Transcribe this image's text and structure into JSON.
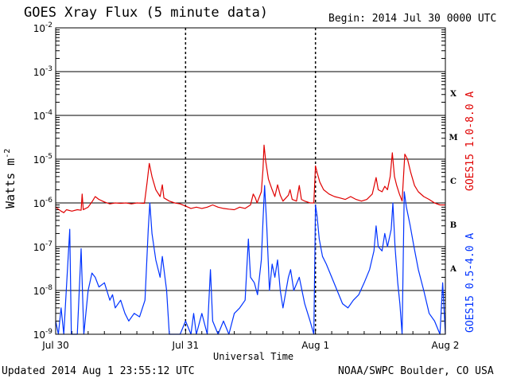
{
  "chart_data": {
    "type": "line",
    "title": "GOES Xray Flux (5 minute data)",
    "begin_label": "Begin:  2014 Jul 30 0000 UTC",
    "xlabel": "Universal Time",
    "ylabel": "Watts m",
    "ylabel_sup": "-2",
    "y_scale": "log",
    "ylim": [
      1e-09,
      0.01
    ],
    "xlim_hours": [
      0,
      72
    ],
    "grid": true,
    "x_ticks": [
      {
        "label": "Jul 30",
        "hour": 0
      },
      {
        "label": "Jul 31",
        "hour": 24
      },
      {
        "label": "Aug 1",
        "hour": 48
      },
      {
        "label": "Aug 2",
        "hour": 72
      }
    ],
    "y_ticks": [
      {
        "base": "10",
        "exp": "-9",
        "value": 1e-09
      },
      {
        "base": "10",
        "exp": "-8",
        "value": 1e-08
      },
      {
        "base": "10",
        "exp": "-7",
        "value": 1e-07
      },
      {
        "base": "10",
        "exp": "-6",
        "value": 1e-06
      },
      {
        "base": "10",
        "exp": "-5",
        "value": 1e-05
      },
      {
        "base": "10",
        "exp": "-4",
        "value": 0.0001
      },
      {
        "base": "10",
        "exp": "-3",
        "value": 0.001
      },
      {
        "base": "10",
        "exp": "-2",
        "value": 0.01
      }
    ],
    "flare_classes": [
      {
        "label": "A",
        "value": 3.2e-08
      },
      {
        "label": "B",
        "value": 3.2e-07
      },
      {
        "label": "C",
        "value": 3.2e-06
      },
      {
        "label": "M",
        "value": 3.2e-05
      },
      {
        "label": "X",
        "value": 0.00032
      }
    ],
    "series": [
      {
        "name": "GOES15 1.0-8.0 A",
        "color": "#e00000",
        "points": [
          [
            0,
            8e-07
          ],
          [
            1,
            6.5e-07
          ],
          [
            1.5,
            6e-07
          ],
          [
            2,
            7e-07
          ],
          [
            3,
            6.5e-07
          ],
          [
            4,
            7e-07
          ],
          [
            4.7,
            6.8e-07
          ],
          [
            4.9,
            1.6e-06
          ],
          [
            5.1,
            7e-07
          ],
          [
            6,
            8e-07
          ],
          [
            6.8,
            1.1e-06
          ],
          [
            7.3,
            1.4e-06
          ],
          [
            8,
            1.2e-06
          ],
          [
            9,
            1.05e-06
          ],
          [
            10,
            9.5e-07
          ],
          [
            11,
            1e-06
          ],
          [
            12,
            9.8e-07
          ],
          [
            13,
            1e-06
          ],
          [
            14,
            9.5e-07
          ],
          [
            15,
            1e-06
          ],
          [
            16.4,
            9.8e-07
          ],
          [
            16.9,
            3e-06
          ],
          [
            17.3,
            8e-06
          ],
          [
            17.8,
            4e-06
          ],
          [
            18.5,
            2e-06
          ],
          [
            19.3,
            1.4e-06
          ],
          [
            19.7,
            2.6e-06
          ],
          [
            20,
            1.3e-06
          ],
          [
            21,
            1.1e-06
          ],
          [
            22,
            1e-06
          ],
          [
            23,
            9.5e-07
          ],
          [
            24,
            8.5e-07
          ],
          [
            25,
            7.5e-07
          ],
          [
            26,
            8e-07
          ],
          [
            27,
            7.5e-07
          ],
          [
            28,
            8e-07
          ],
          [
            29,
            9e-07
          ],
          [
            30,
            8e-07
          ],
          [
            31,
            7.5e-07
          ],
          [
            32,
            7.2e-07
          ],
          [
            33,
            7e-07
          ],
          [
            34,
            8e-07
          ],
          [
            35,
            7.5e-07
          ],
          [
            36,
            9e-07
          ],
          [
            36.5,
            1.6e-06
          ],
          [
            36.9,
            1.3e-06
          ],
          [
            37.2,
            1e-06
          ],
          [
            38,
            1.8e-06
          ],
          [
            38.3,
            6e-06
          ],
          [
            38.5,
            2.1e-05
          ],
          [
            38.8,
            9e-06
          ],
          [
            39.3,
            3.5e-06
          ],
          [
            40,
            2e-06
          ],
          [
            40.5,
            1.4e-06
          ],
          [
            41,
            2.6e-06
          ],
          [
            41.5,
            1.5e-06
          ],
          [
            42,
            1.1e-06
          ],
          [
            43,
            1.5e-06
          ],
          [
            43.3,
            2e-06
          ],
          [
            43.7,
            1.2e-06
          ],
          [
            44.5,
            1.1e-06
          ],
          [
            45,
            2.5e-06
          ],
          [
            45.4,
            1.2e-06
          ],
          [
            46,
            1.1e-06
          ],
          [
            47,
            1e-06
          ],
          [
            47.7,
            1e-06
          ],
          [
            48,
            7e-06
          ],
          [
            48.3,
            5e-06
          ],
          [
            48.8,
            3e-06
          ],
          [
            49.5,
            2e-06
          ],
          [
            50.5,
            1.6e-06
          ],
          [
            51.5,
            1.4e-06
          ],
          [
            52.5,
            1.3e-06
          ],
          [
            53.5,
            1.2e-06
          ],
          [
            54.5,
            1.4e-06
          ],
          [
            55.5,
            1.2e-06
          ],
          [
            56.5,
            1.1e-06
          ],
          [
            57.5,
            1.2e-06
          ],
          [
            58.5,
            1.6e-06
          ],
          [
            59.2,
            3.8e-06
          ],
          [
            59.6,
            2e-06
          ],
          [
            60.3,
            1.8e-06
          ],
          [
            60.8,
            2.4e-06
          ],
          [
            61.3,
            2e-06
          ],
          [
            61.8,
            4e-06
          ],
          [
            62.2,
            1.4e-05
          ],
          [
            62.6,
            4e-06
          ],
          [
            63,
            2.5e-06
          ],
          [
            63.5,
            1.6e-06
          ],
          [
            64,
            1.1e-06
          ],
          [
            64.5,
            1.3e-05
          ],
          [
            65,
            1e-05
          ],
          [
            65.6,
            5e-06
          ],
          [
            66.3,
            2.5e-06
          ],
          [
            67,
            1.8e-06
          ],
          [
            68,
            1.4e-06
          ],
          [
            69,
            1.2e-06
          ],
          [
            70,
            1e-06
          ],
          [
            71,
            9e-07
          ],
          [
            72,
            9e-07
          ]
        ]
      },
      {
        "name": "GOES15 0.5-4.0 A",
        "color": "#0033ff",
        "points": [
          [
            0,
            2e-09
          ],
          [
            0.5,
            1e-09
          ],
          [
            1,
            4e-09
          ],
          [
            1.5,
            1e-09
          ],
          [
            2.6,
            2.5e-07
          ],
          [
            2.9,
            1e-09
          ],
          [
            4,
            1e-09
          ],
          [
            4.7,
            9e-08
          ],
          [
            5.2,
            1e-09
          ],
          [
            6,
            1e-08
          ],
          [
            6.7,
            2.5e-08
          ],
          [
            7.3,
            2e-08
          ],
          [
            8,
            1.2e-08
          ],
          [
            9,
            1.5e-08
          ],
          [
            10,
            6e-09
          ],
          [
            10.5,
            8e-09
          ],
          [
            11,
            4e-09
          ],
          [
            12,
            6e-09
          ],
          [
            12.8,
            3e-09
          ],
          [
            13.5,
            2e-09
          ],
          [
            14.5,
            3e-09
          ],
          [
            15.5,
            2.5e-09
          ],
          [
            16.5,
            6e-09
          ],
          [
            17.1,
            2.5e-07
          ],
          [
            17.4,
            1e-06
          ],
          [
            17.8,
            2e-07
          ],
          [
            18.5,
            5e-08
          ],
          [
            19.3,
            2e-08
          ],
          [
            19.7,
            6e-08
          ],
          [
            20.5,
            1e-08
          ],
          [
            21,
            1e-09
          ],
          [
            22,
            1e-09
          ],
          [
            23,
            1e-09
          ],
          [
            24,
            2e-09
          ],
          [
            25,
            1e-09
          ],
          [
            25.5,
            3e-09
          ],
          [
            26,
            1e-09
          ],
          [
            27,
            3e-09
          ],
          [
            28,
            1e-09
          ],
          [
            28.6,
            3e-08
          ],
          [
            29,
            2e-09
          ],
          [
            30,
            1e-09
          ],
          [
            31,
            2e-09
          ],
          [
            32,
            1e-09
          ],
          [
            33,
            3e-09
          ],
          [
            34,
            4e-09
          ],
          [
            35,
            6e-09
          ],
          [
            35.6,
            1.5e-07
          ],
          [
            36,
            2e-08
          ],
          [
            36.7,
            1.5e-08
          ],
          [
            37.3,
            8e-09
          ],
          [
            38,
            5e-08
          ],
          [
            38.3,
            4e-07
          ],
          [
            38.6,
            2.5e-06
          ],
          [
            39,
            3e-07
          ],
          [
            39.5,
            1e-08
          ],
          [
            40,
            4e-08
          ],
          [
            40.5,
            2e-08
          ],
          [
            41,
            5e-08
          ],
          [
            41.5,
            1e-08
          ],
          [
            42,
            4e-09
          ],
          [
            43,
            2e-08
          ],
          [
            43.4,
            3e-08
          ],
          [
            44,
            1e-08
          ],
          [
            45,
            2e-08
          ],
          [
            46,
            5e-09
          ],
          [
            47,
            2e-09
          ],
          [
            47.7,
            1e-09
          ],
          [
            48,
            9e-07
          ],
          [
            48.3,
            5e-07
          ],
          [
            48.7,
            1.5e-07
          ],
          [
            49.3,
            6e-08
          ],
          [
            50,
            4e-08
          ],
          [
            51,
            2e-08
          ],
          [
            52,
            1e-08
          ],
          [
            53,
            5e-09
          ],
          [
            54,
            4e-09
          ],
          [
            55,
            6e-09
          ],
          [
            56,
            8e-09
          ],
          [
            57,
            1.5e-08
          ],
          [
            58,
            3e-08
          ],
          [
            58.8,
            8e-08
          ],
          [
            59.2,
            3e-07
          ],
          [
            59.6,
            1e-07
          ],
          [
            60.3,
            8e-08
          ],
          [
            60.8,
            2e-07
          ],
          [
            61.3,
            1e-07
          ],
          [
            62,
            2.5e-07
          ],
          [
            62.3,
            1e-06
          ],
          [
            62.7,
            1e-07
          ],
          [
            63.2,
            1.5e-08
          ],
          [
            63.6,
            5e-09
          ],
          [
            64,
            1e-09
          ],
          [
            64.4,
            1.8e-06
          ],
          [
            64.8,
            8e-07
          ],
          [
            65.5,
            3e-07
          ],
          [
            66.2,
            1e-07
          ],
          [
            67,
            3e-08
          ],
          [
            68,
            1e-08
          ],
          [
            69,
            3e-09
          ],
          [
            70,
            2e-09
          ],
          [
            71,
            1e-09
          ],
          [
            71.5,
            1.5e-08
          ],
          [
            72,
            1e-09
          ]
        ]
      }
    ]
  },
  "footer": {
    "updated": "Updated 2014 Aug  1 23:55:12 UTC",
    "credit": "NOAA/SWPC Boulder, CO USA"
  }
}
